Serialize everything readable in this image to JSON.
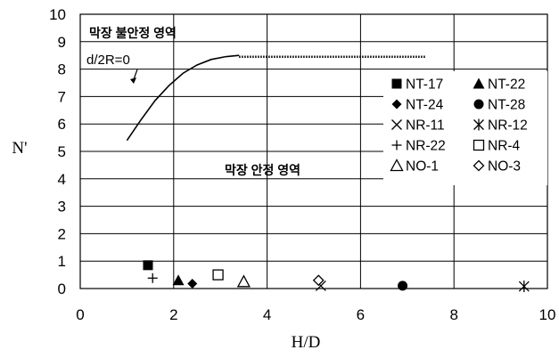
{
  "chart_data": {
    "type": "scatter",
    "xlabel": "H/D",
    "ylabel": "N'",
    "xlim": [
      0,
      10
    ],
    "ylim": [
      0,
      10
    ],
    "xticks": [
      "0",
      "2",
      "4",
      "6",
      "8",
      "10"
    ],
    "yticks": [
      "0",
      "1",
      "2",
      "3",
      "4",
      "5",
      "6",
      "7",
      "8",
      "9",
      "10"
    ],
    "grid": true,
    "annotations": {
      "unstable_region": "막장 불안정 영역",
      "stable_region": "막장 안정 영역",
      "curve_label": "d/2R=0"
    },
    "curve": {
      "solid_x": [
        1.0,
        1.3,
        1.6,
        1.9,
        2.2,
        2.5,
        2.8,
        3.1,
        3.4
      ],
      "solid_y": [
        5.4,
        6.15,
        6.85,
        7.4,
        7.85,
        8.15,
        8.35,
        8.45,
        8.5
      ],
      "dotted_x": [
        3.4,
        7.4
      ],
      "dotted_y": [
        8.45,
        8.45
      ]
    },
    "series": [
      {
        "name": "NT-17",
        "marker": "filled-square",
        "x": 1.45,
        "y": 0.85
      },
      {
        "name": "NT-22",
        "marker": "filled-triangle",
        "x": 2.1,
        "y": 0.3
      },
      {
        "name": "NT-24",
        "marker": "filled-diamond",
        "x": 2.4,
        "y": 0.18
      },
      {
        "name": "NT-28",
        "marker": "filled-circle",
        "x": 6.9,
        "y": 0.1
      },
      {
        "name": "NR-11",
        "marker": "x",
        "x": 5.15,
        "y": 0.1
      },
      {
        "name": "NR-12",
        "marker": "asterisk",
        "x": 9.5,
        "y": 0.08
      },
      {
        "name": "NR-22",
        "marker": "plus",
        "x": 1.55,
        "y": 0.38
      },
      {
        "name": "NR-4",
        "marker": "open-square",
        "x": 2.95,
        "y": 0.5
      },
      {
        "name": "NO-1",
        "marker": "open-triangle",
        "x": 3.5,
        "y": 0.25
      },
      {
        "name": "NO-3",
        "marker": "open-diamond",
        "x": 5.1,
        "y": 0.3
      }
    ]
  }
}
